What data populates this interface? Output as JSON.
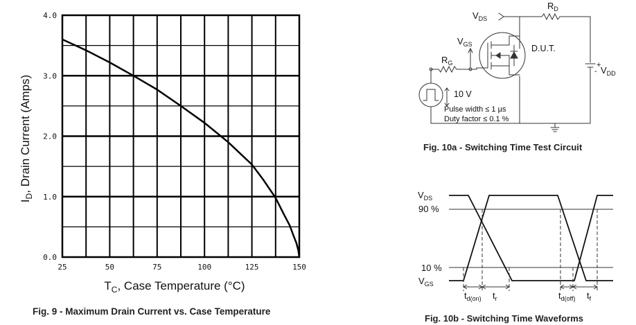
{
  "chart_data": [
    {
      "type": "line",
      "title": "Fig. 9 - Maximum Drain Current vs. Case Temperature",
      "xlabel": {
        "main": "T",
        "sub": "C",
        "rest": ", Case Temperature (°C)"
      },
      "ylabel": {
        "main": "I",
        "sub": "D",
        "rest": ", Drain Current (Amps)"
      },
      "xlim": [
        25,
        150
      ],
      "ylim": [
        0.0,
        4.0
      ],
      "xticks": [
        "25",
        "50",
        "75",
        "100",
        "125",
        "150"
      ],
      "xtick_values": [
        25,
        50,
        75,
        100,
        125,
        150
      ],
      "yticks": [
        "0.0",
        "1.0",
        "2.0",
        "3.0",
        "4.0"
      ],
      "ytick_values": [
        0,
        1,
        2,
        3,
        4
      ],
      "grid": true,
      "series": [
        {
          "x": [
            25,
            37.5,
            50,
            62.5,
            75,
            87.5,
            100,
            112.5,
            125,
            131,
            137.5,
            142,
            145,
            147,
            148.5,
            149.5,
            150
          ],
          "y": [
            3.6,
            3.42,
            3.22,
            3.0,
            2.77,
            2.5,
            2.22,
            1.9,
            1.53,
            1.28,
            0.98,
            0.7,
            0.52,
            0.35,
            0.23,
            0.11,
            0.0
          ]
        }
      ]
    }
  ],
  "circuit": {
    "caption": "Fig. 10a - Switching Time Test Circuit",
    "vds": {
      "main": "V",
      "sub": "DS"
    },
    "rd": {
      "main": "R",
      "sub": "D"
    },
    "vgs": {
      "main": "V",
      "sub": "GS"
    },
    "rg": {
      "main": "R",
      "sub": "G"
    },
    "dut": "D.U.T.",
    "vdd": {
      "main": "V",
      "sub": "DD"
    },
    "plus": "+",
    "minus": "-",
    "source_voltage": "10 V",
    "pulse_width": "Pulse width ≤ 1 µs",
    "duty_factor": "Duty factor ≤ 0.1 %"
  },
  "waveforms": {
    "caption": "Fig. 10b - Switching Time Waveforms",
    "vds": {
      "main": "V",
      "sub": "DS"
    },
    "p90": "90 %",
    "p10": "10 %",
    "vgs": {
      "main": "V",
      "sub": "GS"
    },
    "tdon": {
      "main": "t",
      "sub": "d(on)"
    },
    "tr": {
      "main": "t",
      "sub": "r"
    },
    "tdoff": {
      "main": "t",
      "sub": "d(off)"
    },
    "tf": {
      "main": "t",
      "sub": "f"
    }
  }
}
